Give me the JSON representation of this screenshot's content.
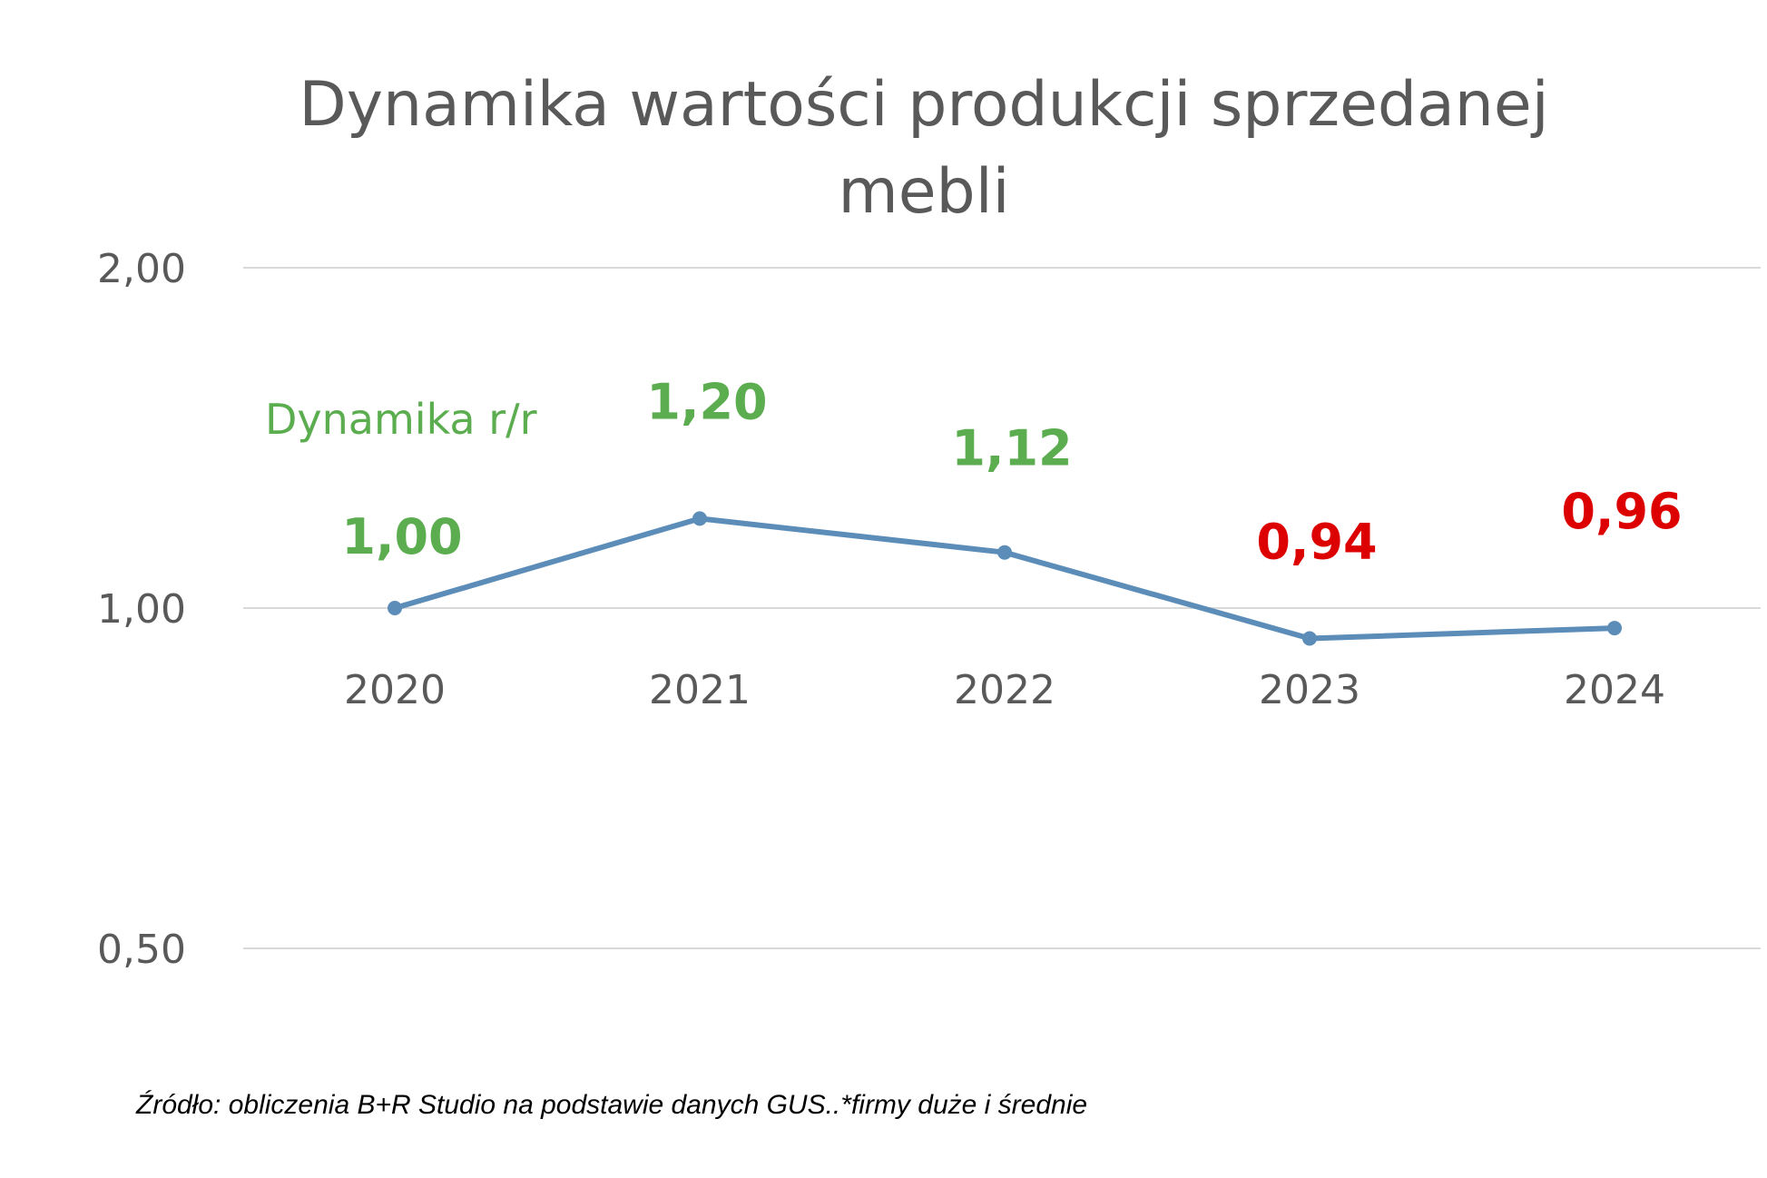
{
  "chart_data": {
    "type": "line",
    "title_lines": [
      "Dynamika wartości produkcji sprzedanej",
      "mebli"
    ],
    "categories": [
      "2020",
      "2021",
      "2022",
      "2023",
      "2024"
    ],
    "series": [
      {
        "name": "Dynamika r/r",
        "values": [
          1.0,
          1.2,
          1.12,
          0.94,
          0.96
        ],
        "labels": [
          "1,00",
          "1,20",
          "1,12",
          "0,94",
          "0,96"
        ]
      }
    ],
    "y_ticks": [
      "2,00",
      "1,00",
      "0,50"
    ],
    "y_tick_values": [
      2.0,
      1.0,
      0.5
    ],
    "y_scale": "log",
    "ylim": [
      0.5,
      2.0
    ],
    "grid": true,
    "legend_position": "top-left",
    "xlabel": "",
    "ylabel": "",
    "source_note": "Źródło: obliczenia B+R Studio na podstawie danych GUS..*firmy duże i średnie"
  },
  "colors": {
    "line": "#5B8DB8",
    "positive_label": "#5BAD4F",
    "negative_label": "#DC0000",
    "legend": "#5BAD4F",
    "grid": "#D9D9D9",
    "text": "#595959"
  }
}
